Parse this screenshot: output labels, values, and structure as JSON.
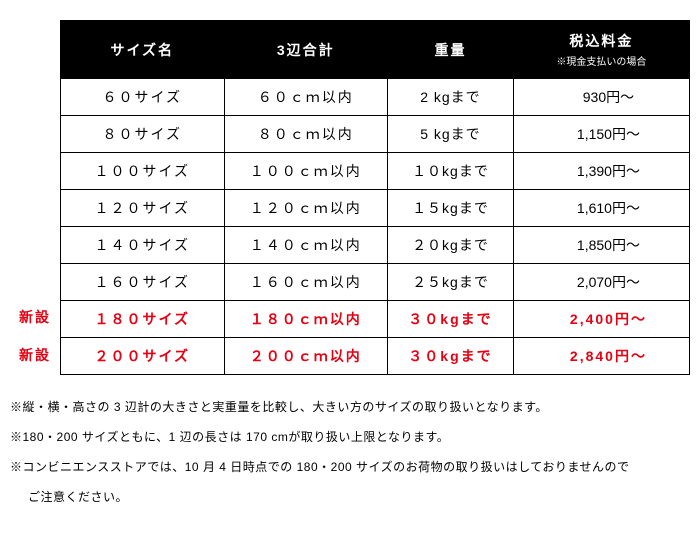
{
  "table": {
    "headers": {
      "size": "サイズ名",
      "dim": "3辺合計",
      "weight": "重量",
      "price_main": "税込料金",
      "price_sub": "※現金支払いの場合"
    },
    "col_widths": [
      "26%",
      "26%",
      "20%",
      "28%"
    ],
    "rows": [
      {
        "size": "６０サイズ",
        "dim": "６０ｃｍ以内",
        "weight": "2 kgまで",
        "price": "930円～",
        "new": false
      },
      {
        "size": "８０サイズ",
        "dim": "８０ｃｍ以内",
        "weight": "5 kgまで",
        "price": "1,150円～",
        "new": false
      },
      {
        "size": "１００サイズ",
        "dim": "１００ｃｍ以内",
        "weight": "１０kgまで",
        "price": "1,390円～",
        "new": false
      },
      {
        "size": "１２０サイズ",
        "dim": "１２０ｃｍ以内",
        "weight": "１５kgまで",
        "price": "1,610円～",
        "new": false
      },
      {
        "size": "１４０サイズ",
        "dim": "１４０ｃｍ以内",
        "weight": "２０kgまで",
        "price": "1,850円～",
        "new": false
      },
      {
        "size": "１６０サイズ",
        "dim": "１６０ｃｍ以内",
        "weight": "２５kgまで",
        "price": "2,070円～",
        "new": false
      },
      {
        "size": "１８０サイズ",
        "dim": "１８０ｃｍ以内",
        "weight": "３０kgまで",
        "price": "2,400円～",
        "new": true,
        "badge": "新設"
      },
      {
        "size": "２００サイズ",
        "dim": "２００ｃｍ以内",
        "weight": "３０kgまで",
        "price": "2,840円～",
        "new": true,
        "badge": "新設"
      }
    ]
  },
  "notes": {
    "n1": "※縦・横・高さの 3 辺計の大きさと実重量を比較し、大きい方のサイズの取り扱いとなります。",
    "n2": "※180・200 サイズともに、1 辺の長さは 170 cmが取り扱い上限となります。",
    "n3a": "※コンビニエンスストアでは、10 月 4 日時点での 180・200 サイズのお荷物の取り扱いはしておりませんので",
    "n3b": "ご注意ください。"
  },
  "colors": {
    "header_bg": "#000000",
    "header_fg": "#ffffff",
    "border": "#000000",
    "accent_red": "#e60012",
    "bg": "#ffffff",
    "text": "#000000"
  }
}
